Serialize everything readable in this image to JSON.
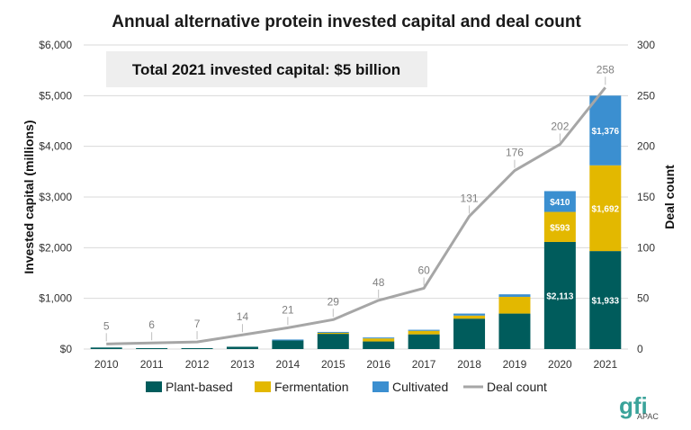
{
  "chart_data": {
    "type": "bar",
    "title": "Annual alternative protein invested capital and deal count",
    "callout": "Total 2021 invested capital: $5 billion",
    "ylabel": "Invested capital (millions)",
    "y2label": "Deal count",
    "ylim": [
      0,
      6000
    ],
    "y2lim": [
      0,
      300
    ],
    "yticks": [
      "$0",
      "$1,000",
      "$2,000",
      "$3,000",
      "$4,000",
      "$5,000",
      "$6,000"
    ],
    "y2ticks": [
      "0",
      "50",
      "100",
      "150",
      "200",
      "250",
      "300"
    ],
    "categories": [
      "2010",
      "2011",
      "2012",
      "2013",
      "2014",
      "2015",
      "2016",
      "2017",
      "2018",
      "2019",
      "2020",
      "2021"
    ],
    "series": [
      {
        "name": "Plant-based",
        "color": "#005c5c",
        "values": [
          30,
          5,
          10,
          45,
          170,
          300,
          150,
          290,
          600,
          700,
          2113,
          1933
        ],
        "labels": [
          "",
          "",
          "",
          "",
          "",
          "",
          "",
          "",
          "",
          "",
          "$2,113",
          "$1,933"
        ]
      },
      {
        "name": "Fermentation",
        "color": "#e3b800",
        "values": [
          0,
          0,
          0,
          0,
          0,
          20,
          60,
          70,
          60,
          330,
          593,
          1692
        ],
        "labels": [
          "",
          "",
          "",
          "",
          "",
          "",
          "",
          "",
          "",
          "",
          "$593",
          "$1,692"
        ]
      },
      {
        "name": "Cultivated",
        "color": "#3b8fd0",
        "values": [
          0,
          0,
          0,
          0,
          5,
          5,
          10,
          20,
          40,
          50,
          410,
          1376
        ],
        "labels": [
          "",
          "",
          "",
          "",
          "",
          "",
          "",
          "",
          "",
          "",
          "$410",
          "$1,376"
        ]
      }
    ],
    "line": {
      "name": "Deal count",
      "color": "#a6a6a6",
      "values": [
        5,
        6,
        7,
        14,
        21,
        29,
        48,
        60,
        131,
        176,
        202,
        258
      ]
    },
    "legend": {
      "position": "bottom",
      "items": [
        "Plant-based",
        "Fermentation",
        "Cultivated",
        "Deal count"
      ]
    },
    "grid": true
  },
  "logo": {
    "brand": "gfi",
    "sub": "APAC",
    "color": "#3aa39a"
  }
}
